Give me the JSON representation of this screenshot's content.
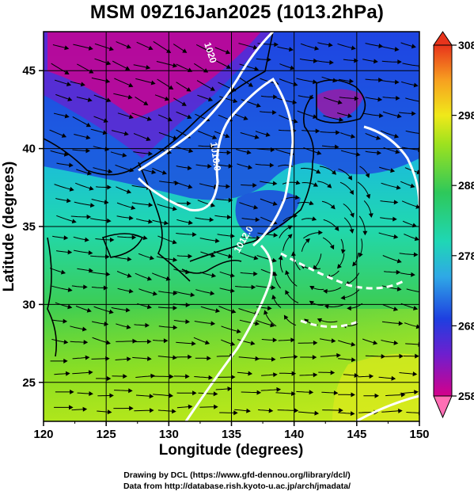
{
  "title": "MSM 09Z16Jan2025 (1013.2hPa)",
  "x_axis": {
    "label": "Longitude (degrees)",
    "range": [
      120,
      150
    ],
    "ticks": [
      "120",
      "125",
      "130",
      "135",
      "140",
      "145",
      "150"
    ]
  },
  "y_axis": {
    "label": "Latitude  (degrees)",
    "range": [
      22.5,
      47.5
    ],
    "ticks": [
      "25",
      "30",
      "35",
      "40",
      "45"
    ]
  },
  "colorbar": {
    "range": [
      258,
      308
    ],
    "ticks": [
      "308",
      "298",
      "288",
      "278",
      "268",
      "258"
    ],
    "colors": [
      "#d4008a",
      "#6d1fcf",
      "#1e3fe0",
      "#2fa8e6",
      "#1fd7b5",
      "#2ec85a",
      "#9fe21e",
      "#f0e91a",
      "#f7a020",
      "#e8341c"
    ]
  },
  "contours": {
    "labels": [
      "1020",
      "1016.0",
      "1012.0"
    ],
    "color": "#ffffff"
  },
  "credits": {
    "line1": "Drawing by DCL (https://www.gfd-dennou.org/library/dcl/)",
    "line2": "Data from http://database.rish.kyoto-u.ac.jp/arch/jmadata/"
  }
}
